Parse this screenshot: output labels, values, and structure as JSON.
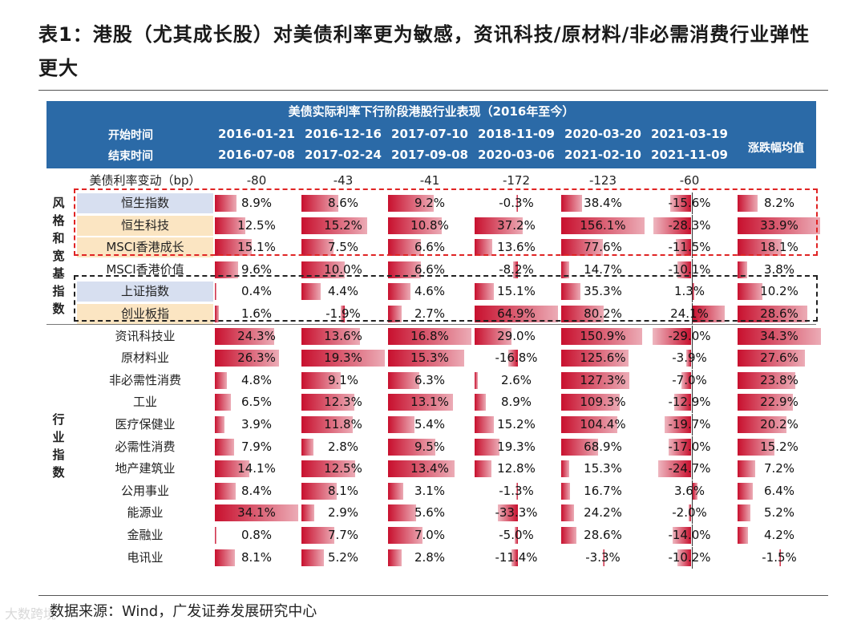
{
  "title": "表1：港股（尤其成长股）对美债利率更为敏感，资讯科技/原材料/非必需消费行业弹性更大",
  "table": {
    "banner": "美债实际利率下行阶段港股行业表现（2016年至今）",
    "start_label": "开始时间",
    "end_label": "结束时间",
    "avg_label": "涨跌幅均值",
    "start_dates": [
      "2016-01-21",
      "2016-12-16",
      "2017-07-10",
      "2018-11-09",
      "2020-03-20",
      "2021-03-19"
    ],
    "end_dates": [
      "2016-07-08",
      "2017-02-24",
      "2017-09-08",
      "2020-03-06",
      "2021-02-10",
      "2021-11-09"
    ],
    "rate_change_label": "美债利率变动（bp）",
    "rate_changes": [
      "-80",
      "-43",
      "-41",
      "-172",
      "-123",
      "-60"
    ],
    "categories": {
      "style": "风格和宽基指数",
      "industry": "行业指数"
    },
    "rows": [
      {
        "name": "恒生指数",
        "hl": "blue",
        "values": [
          8.9,
          8.6,
          9.2,
          -0.3,
          38.4,
          -15.6,
          8.2
        ],
        "labels": [
          "8.9%",
          "8.6%",
          "9.2%",
          "-0.3%",
          "38.4%",
          "-15.6%",
          "8.2%"
        ]
      },
      {
        "name": "恒生科技",
        "hl": "cream",
        "values": [
          12.5,
          15.2,
          10.8,
          37.2,
          156.1,
          -28.3,
          33.9
        ],
        "labels": [
          "12.5%",
          "15.2%",
          "10.8%",
          "37.2%",
          "156.1%",
          "-28.3%",
          "33.9%"
        ]
      },
      {
        "name": "MSCI香港成长",
        "hl": "cream",
        "values": [
          15.1,
          7.5,
          6.6,
          13.6,
          77.6,
          -11.5,
          18.1
        ],
        "labels": [
          "15.1%",
          "7.5%",
          "6.6%",
          "13.6%",
          "77.6%",
          "-11.5%",
          "18.1%"
        ]
      },
      {
        "name": "MSCI香港价值",
        "hl": "",
        "values": [
          9.6,
          10.0,
          6.6,
          -8.2,
          14.7,
          -10.1,
          3.8
        ],
        "labels": [
          "9.6%",
          "10.0%",
          "6.6%",
          "-8.2%",
          "14.7%",
          "-10.1%",
          "3.8%"
        ]
      },
      {
        "name": "上证指数",
        "hl": "blue",
        "values": [
          0.4,
          4.4,
          4.6,
          15.1,
          35.3,
          1.3,
          10.2
        ],
        "labels": [
          "0.4%",
          "4.4%",
          "4.6%",
          "15.1%",
          "35.3%",
          "1.3%",
          "10.2%"
        ]
      },
      {
        "name": "创业板指",
        "hl": "cream",
        "values": [
          1.6,
          -1.9,
          2.7,
          64.9,
          80.2,
          24.1,
          28.6
        ],
        "labels": [
          "1.6%",
          "-1.9%",
          "2.7%",
          "64.9%",
          "80.2%",
          "24.1%",
          "28.6%"
        ]
      },
      {
        "name": "资讯科技业",
        "hl": "",
        "values": [
          24.3,
          13.6,
          16.8,
          29.0,
          150.9,
          -29.0,
          34.3
        ],
        "labels": [
          "24.3%",
          "13.6%",
          "16.8%",
          "29.0%",
          "150.9%",
          "-29.0%",
          "34.3%"
        ]
      },
      {
        "name": "原材料业",
        "hl": "",
        "values": [
          26.3,
          19.3,
          15.3,
          -16.8,
          125.6,
          -3.9,
          27.6
        ],
        "labels": [
          "26.3%",
          "19.3%",
          "15.3%",
          "-16.8%",
          "125.6%",
          "-3.9%",
          "27.6%"
        ]
      },
      {
        "name": "非必需性消费",
        "hl": "",
        "values": [
          4.8,
          9.1,
          6.3,
          2.6,
          127.3,
          -7.0,
          23.8
        ],
        "labels": [
          "4.8%",
          "9.1%",
          "6.3%",
          "2.6%",
          "127.3%",
          "-7.0%",
          "23.8%"
        ]
      },
      {
        "name": "工业",
        "hl": "",
        "values": [
          6.5,
          12.3,
          13.1,
          8.9,
          109.3,
          -12.9,
          22.9
        ],
        "labels": [
          "6.5%",
          "12.3%",
          "13.1%",
          "8.9%",
          "109.3%",
          "-12.9%",
          "22.9%"
        ]
      },
      {
        "name": "医疗保健业",
        "hl": "",
        "values": [
          3.9,
          11.8,
          5.4,
          15.2,
          104.4,
          -19.7,
          20.2
        ],
        "labels": [
          "3.9%",
          "11.8%",
          "5.4%",
          "15.2%",
          "104.4%",
          "-19.7%",
          "20.2%"
        ]
      },
      {
        "name": "必需性消费",
        "hl": "",
        "values": [
          7.9,
          2.8,
          9.5,
          19.3,
          68.9,
          -17.0,
          15.2
        ],
        "labels": [
          "7.9%",
          "2.8%",
          "9.5%",
          "19.3%",
          "68.9%",
          "-17.0%",
          "15.2%"
        ]
      },
      {
        "name": "地产建筑业",
        "hl": "",
        "values": [
          14.1,
          12.5,
          13.4,
          12.8,
          15.3,
          -24.7,
          7.2
        ],
        "labels": [
          "14.1%",
          "12.5%",
          "13.4%",
          "12.8%",
          "15.3%",
          "-24.7%",
          "7.2%"
        ]
      },
      {
        "name": "公用事业",
        "hl": "",
        "values": [
          8.4,
          8.1,
          3.1,
          -1.3,
          16.7,
          3.6,
          6.4
        ],
        "labels": [
          "8.4%",
          "8.1%",
          "3.1%",
          "-1.3%",
          "16.7%",
          "3.6%",
          "6.4%"
        ]
      },
      {
        "name": "能源业",
        "hl": "",
        "values": [
          34.1,
          2.9,
          5.6,
          -33.3,
          24.2,
          -2.0,
          5.2
        ],
        "labels": [
          "34.1%",
          "2.9%",
          "5.6%",
          "-33.3%",
          "24.2%",
          "-2.0%",
          "5.2%"
        ]
      },
      {
        "name": "金融业",
        "hl": "",
        "values": [
          0.8,
          7.7,
          7.0,
          -5.0,
          28.6,
          -14.0,
          4.2
        ],
        "labels": [
          "0.8%",
          "7.7%",
          "7.0%",
          "-5.0%",
          "28.6%",
          "-14.0%",
          "4.2%"
        ]
      },
      {
        "name": "电讯业",
        "hl": "",
        "values": [
          8.1,
          5.2,
          2.8,
          -11.4,
          -3.3,
          -10.2,
          -1.5
        ],
        "labels": [
          "8.1%",
          "5.2%",
          "2.8%",
          "-11.4%",
          "-3.3%",
          "-10.2%",
          "-1.5%"
        ]
      }
    ]
  },
  "footer": "数据来源：Wind，广发证券发展研究中心",
  "watermark": "大数跨境",
  "colors": {
    "header_bg": "#2b6aa7",
    "bar_red": "#c8102e",
    "box_red": "#e02424"
  }
}
